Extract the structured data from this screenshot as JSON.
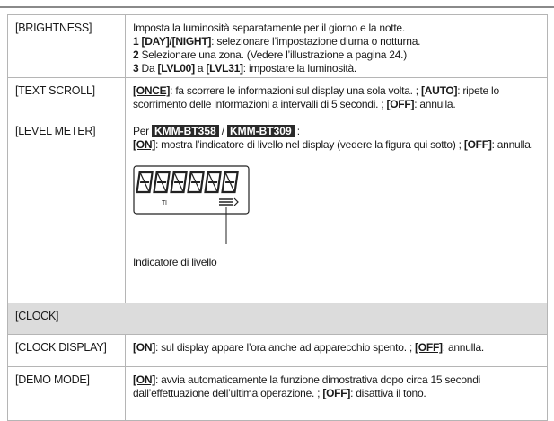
{
  "rows": [
    {
      "label": "[BRIGHTNESS]",
      "lines": [
        [
          {
            "text": "Imposta la luminosità separatamente per il giorno e la notte."
          }
        ],
        [
          {
            "text": "1",
            "bold": true
          },
          {
            "text": " [DAY]/[NIGHT]",
            "bold": true
          },
          {
            "text": ": selezionare l’impostazione diurna o notturna."
          }
        ],
        [
          {
            "text": "2",
            "bold": true
          },
          {
            "text": " Selezionare una zona. (Vedere l’illustrazione a pagina 24.)"
          }
        ],
        [
          {
            "text": "3",
            "bold": true
          },
          {
            "text": " Da "
          },
          {
            "text": "[LVL00]",
            "bold": true
          },
          {
            "text": " a "
          },
          {
            "text": "[LVL31]",
            "bold": true
          },
          {
            "text": ": impostare la luminosità."
          }
        ]
      ]
    },
    {
      "label": "[TEXT SCROLL]",
      "lines": [
        [
          {
            "text": "[ONCE]",
            "bold": true,
            "underline": true
          },
          {
            "text": ": fa scorrere le informazioni sul display una sola volta. ; "
          },
          {
            "text": "[AUTO]",
            "bold": true
          },
          {
            "text": ": ripete lo scorrimento delle informazioni a intervalli di 5 secondi. ; "
          },
          {
            "text": "[OFF]",
            "bold": true
          },
          {
            "text": ": annulla."
          }
        ]
      ]
    },
    {
      "label": "[LEVEL METER]",
      "lines": [
        [
          {
            "text": "Per "
          },
          {
            "text": "KMM-BT358",
            "badge": true
          },
          {
            "text": " / "
          },
          {
            "text": "KMM-BT309",
            "badge": true
          },
          {
            "text": " :"
          }
        ],
        [
          {
            "text": "[ON]",
            "bold": true,
            "underline": true
          },
          {
            "text": ": mostra l’indicatore di livello nel display (vedere la figura qui sotto) ; "
          },
          {
            "text": "[OFF]",
            "bold": true
          },
          {
            "text": ": annulla."
          }
        ]
      ],
      "figure": {
        "label": "TI",
        "caption": "Indicatore di livello"
      }
    },
    {
      "label": "[CLOCK]",
      "section": true
    },
    {
      "label": "[CLOCK DISPLAY]",
      "lines": [
        [
          {
            "text": "[ON]",
            "bold": true
          },
          {
            "text": ": sul display appare l’ora anche ad apparecchio spento. ; "
          },
          {
            "text": "[OFF]",
            "bold": true,
            "underline": true
          },
          {
            "text": ": annulla."
          }
        ]
      ]
    },
    {
      "label": "[DEMO MODE]",
      "lines": [
        [
          {
            "text": "[ON]",
            "bold": true,
            "underline": true
          },
          {
            "text": ": avvia automaticamente la funzione dimostrativa dopo circa 15 secondi dall’effettuazione dell’ultima operazione. ; "
          },
          {
            "text": "[OFF]",
            "bold": true
          },
          {
            "text": ": disattiva il tono."
          }
        ]
      ]
    }
  ]
}
